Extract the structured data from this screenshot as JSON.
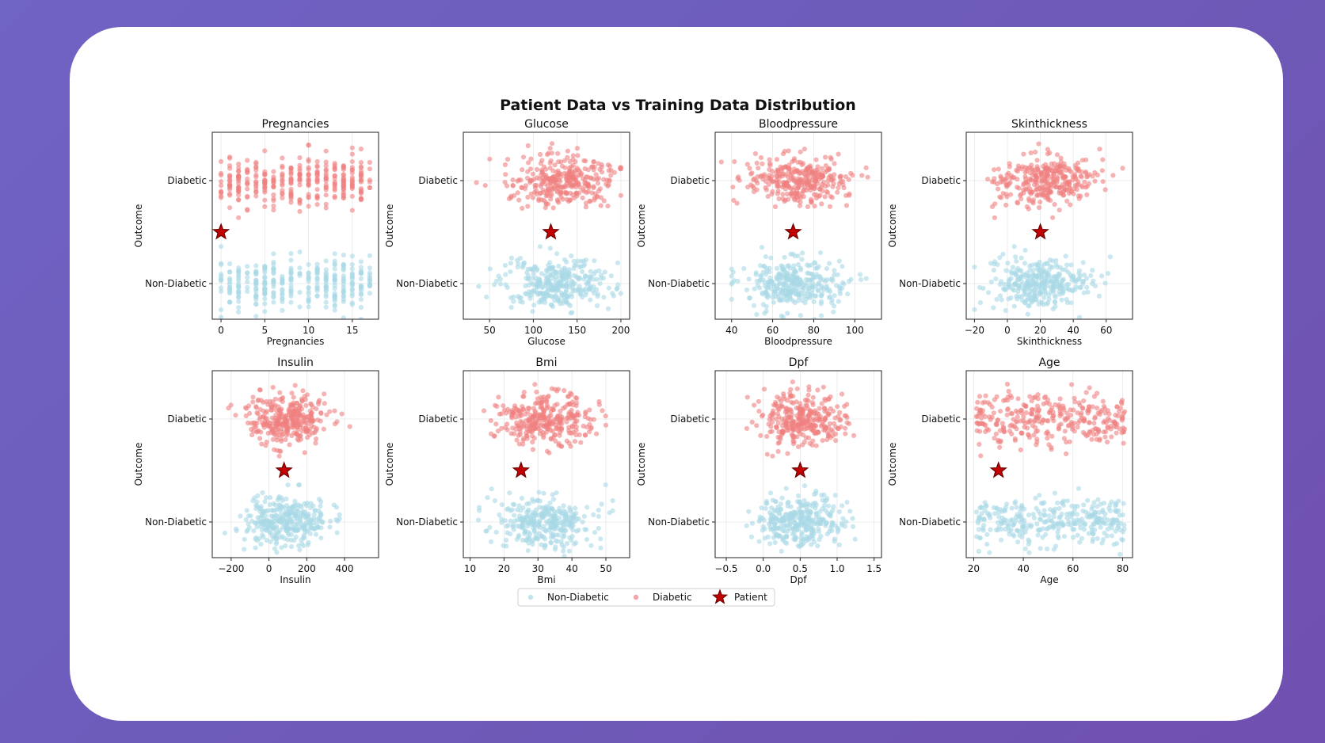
{
  "figure": {
    "title": "Patient Data vs Training Data Distribution"
  },
  "colors": {
    "non_diabetic": "#a8d8e6",
    "diabetic": "#f08080",
    "patient_fill": "#c40000",
    "patient_stroke": "#6b0000",
    "background": "#ffffff"
  },
  "legend": {
    "placement": "bottom-center",
    "entries": [
      {
        "label": "Non-Diabetic",
        "marker": "circle",
        "color": "#a8d8e6"
      },
      {
        "label": "Diabetic",
        "marker": "circle",
        "color": "#f08080"
      },
      {
        "label": "Patient",
        "marker": "star",
        "color": "#c40000"
      }
    ]
  },
  "chart_data": [
    {
      "type": "scatter",
      "title": "Pregnancies",
      "xlabel": "Pregnancies",
      "ylabel": "Outcome",
      "xlim": [
        -1,
        18
      ],
      "xticks": [
        0,
        5,
        10,
        15
      ],
      "xtick_labels": [
        "0",
        "5",
        "10",
        "15"
      ],
      "y_categories": [
        "Diabetic",
        "Non-Diabetic"
      ],
      "grid": true,
      "patient": {
        "x": 0,
        "y": 0.5
      },
      "series": [
        {
          "name": "Non-Diabetic",
          "y": 0,
          "x_range": [
            0,
            17
          ],
          "discrete": true,
          "count": 320
        },
        {
          "name": "Diabetic",
          "y": 1,
          "x_range": [
            0,
            17
          ],
          "discrete": true,
          "count": 320
        }
      ]
    },
    {
      "type": "scatter",
      "title": "Glucose",
      "xlabel": "Glucose",
      "ylabel": "Outcome",
      "xlim": [
        20,
        210
      ],
      "xticks": [
        50,
        100,
        150,
        200
      ],
      "xtick_labels": [
        "50",
        "100",
        "150",
        "200"
      ],
      "y_categories": [
        "Diabetic",
        "Non-Diabetic"
      ],
      "grid": true,
      "patient": {
        "x": 120,
        "y": 0.5
      },
      "series": [
        {
          "name": "Non-Diabetic",
          "y": 0,
          "x_mean": 125,
          "x_sd": 30,
          "x_range": [
            28,
            200
          ],
          "count": 320
        },
        {
          "name": "Diabetic",
          "y": 1,
          "x_mean": 135,
          "x_sd": 30,
          "x_range": [
            35,
            200
          ],
          "count": 320
        }
      ]
    },
    {
      "type": "scatter",
      "title": "Bloodpressure",
      "xlabel": "Bloodpressure",
      "ylabel": "Outcome",
      "xlim": [
        32,
        113
      ],
      "xticks": [
        40,
        60,
        80,
        100
      ],
      "xtick_labels": [
        "40",
        "60",
        "80",
        "100"
      ],
      "y_categories": [
        "Diabetic",
        "Non-Diabetic"
      ],
      "grid": true,
      "patient": {
        "x": 70,
        "y": 0.5
      },
      "series": [
        {
          "name": "Non-Diabetic",
          "y": 0,
          "x_mean": 70,
          "x_sd": 12,
          "x_range": [
            40,
            110
          ],
          "count": 320
        },
        {
          "name": "Diabetic",
          "y": 1,
          "x_mean": 72,
          "x_sd": 12,
          "x_range": [
            35,
            110
          ],
          "count": 320
        }
      ]
    },
    {
      "type": "scatter",
      "title": "Skinthickness",
      "xlabel": "Skinthickness",
      "ylabel": "Outcome",
      "xlim": [
        -25,
        76
      ],
      "xticks": [
        -20,
        0,
        20,
        40,
        60
      ],
      "xtick_labels": [
        "−20",
        "0",
        "20",
        "40",
        "60"
      ],
      "y_categories": [
        "Diabetic",
        "Non-Diabetic"
      ],
      "grid": true,
      "patient": {
        "x": 20,
        "y": 0.5
      },
      "series": [
        {
          "name": "Non-Diabetic",
          "y": 0,
          "x_mean": 20,
          "x_sd": 15,
          "x_range": [
            -20,
            72
          ],
          "count": 320
        },
        {
          "name": "Diabetic",
          "y": 1,
          "x_mean": 22,
          "x_sd": 15,
          "x_range": [
            -20,
            70
          ],
          "count": 320
        }
      ]
    },
    {
      "type": "scatter",
      "title": "Insulin",
      "xlabel": "Insulin",
      "ylabel": "Outcome",
      "xlim": [
        -300,
        580
      ],
      "xticks": [
        -200,
        0,
        200,
        400
      ],
      "xtick_labels": [
        "−200",
        "0",
        "200",
        "400"
      ],
      "y_categories": [
        "Diabetic",
        "Non-Diabetic"
      ],
      "grid": true,
      "patient": {
        "x": 80,
        "y": 0.5
      },
      "series": [
        {
          "name": "Non-Diabetic",
          "y": 0,
          "x_mean": 90,
          "x_sd": 110,
          "x_range": [
            -260,
            430
          ],
          "count": 320
        },
        {
          "name": "Diabetic",
          "y": 1,
          "x_mean": 100,
          "x_sd": 110,
          "x_range": [
            -260,
            530
          ],
          "count": 320
        }
      ]
    },
    {
      "type": "scatter",
      "title": "Bmi",
      "xlabel": "Bmi",
      "ylabel": "Outcome",
      "xlim": [
        8,
        57
      ],
      "xticks": [
        10,
        20,
        30,
        40,
        50
      ],
      "xtick_labels": [
        "10",
        "20",
        "30",
        "40",
        "50"
      ],
      "y_categories": [
        "Diabetic",
        "Non-Diabetic"
      ],
      "grid": true,
      "patient": {
        "x": 25,
        "y": 0.5
      },
      "series": [
        {
          "name": "Non-Diabetic",
          "y": 0,
          "x_mean": 32,
          "x_sd": 7,
          "x_range": [
            12,
            52
          ],
          "count": 320
        },
        {
          "name": "Diabetic",
          "y": 1,
          "x_mean": 32,
          "x_sd": 7,
          "x_range": [
            12,
            55
          ],
          "count": 320
        }
      ]
    },
    {
      "type": "scatter",
      "title": "Dpf",
      "xlabel": "Dpf",
      "ylabel": "Outcome",
      "xlim": [
        -0.65,
        1.6
      ],
      "xticks": [
        -0.5,
        0,
        0.5,
        1,
        1.5
      ],
      "xtick_labels": [
        "−0.5",
        "0.0",
        "0.5",
        "1.0",
        "1.5"
      ],
      "y_categories": [
        "Diabetic",
        "Non-Diabetic"
      ],
      "grid": true,
      "patient": {
        "x": 0.5,
        "y": 0.5
      },
      "series": [
        {
          "name": "Non-Diabetic",
          "y": 0,
          "x_mean": 0.5,
          "x_sd": 0.3,
          "x_range": [
            -0.55,
            1.5
          ],
          "count": 320
        },
        {
          "name": "Diabetic",
          "y": 1,
          "x_mean": 0.5,
          "x_sd": 0.3,
          "x_range": [
            -0.55,
            1.5
          ],
          "count": 320
        }
      ]
    },
    {
      "type": "scatter",
      "title": "Age",
      "xlabel": "Age",
      "ylabel": "Outcome",
      "xlim": [
        17,
        84
      ],
      "xticks": [
        20,
        40,
        60,
        80
      ],
      "xtick_labels": [
        "20",
        "40",
        "60",
        "80"
      ],
      "y_categories": [
        "Diabetic",
        "Non-Diabetic"
      ],
      "grid": true,
      "patient": {
        "x": 30,
        "y": 0.5
      },
      "series": [
        {
          "name": "Non-Diabetic",
          "y": 0,
          "x_range": [
            21,
            81
          ],
          "distribution": "uniform",
          "count": 320
        },
        {
          "name": "Diabetic",
          "y": 1,
          "x_range": [
            21,
            81
          ],
          "distribution": "uniform",
          "count": 320
        }
      ]
    }
  ]
}
